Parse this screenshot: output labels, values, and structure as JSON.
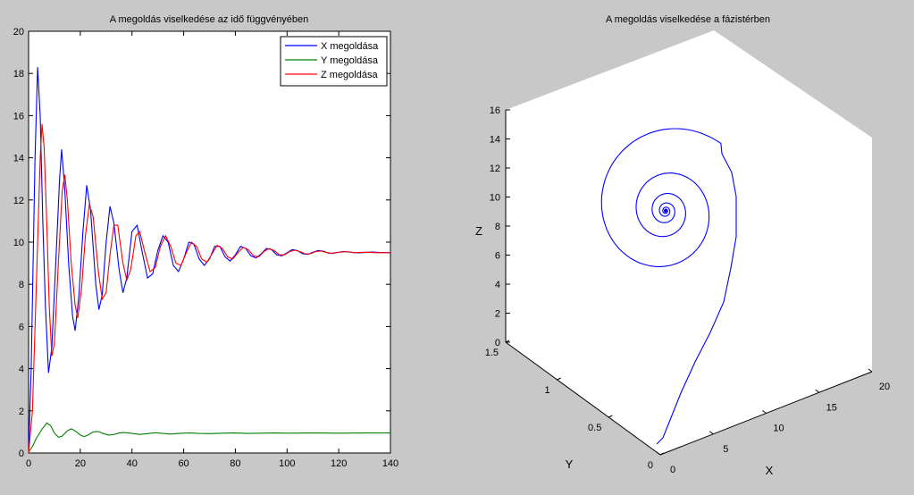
{
  "figure": {
    "background": "#c8c8c8",
    "plot_background": "#ffffff"
  },
  "chart_data": [
    {
      "type": "line",
      "title": "A megoldás viselkedése az idő függvényében",
      "xlabel": "",
      "ylabel": "",
      "xlim": [
        0,
        140
      ],
      "ylim": [
        0,
        20
      ],
      "xticks": [
        0,
        20,
        40,
        60,
        80,
        100,
        120,
        140
      ],
      "yticks": [
        0,
        2,
        4,
        6,
        8,
        10,
        12,
        14,
        16,
        18,
        20
      ],
      "grid": false,
      "legend_position": "top-right",
      "series": [
        {
          "name": "X megoldása",
          "color": "#0000ff",
          "points": [
            [
              0,
              0
            ],
            [
              1,
              4
            ],
            [
              2.5,
              14
            ],
            [
              3.5,
              18.3
            ],
            [
              4.5,
              16
            ],
            [
              5.5,
              11
            ],
            [
              6.5,
              7
            ],
            [
              7.7,
              3.8
            ],
            [
              9,
              5
            ],
            [
              10.5,
              9
            ],
            [
              12,
              13
            ],
            [
              12.8,
              14.4
            ],
            [
              14,
              12.5
            ],
            [
              15.5,
              9
            ],
            [
              17,
              6.5
            ],
            [
              18,
              5.8
            ],
            [
              19.5,
              7.5
            ],
            [
              21,
              10.5
            ],
            [
              22.5,
              12.7
            ],
            [
              24,
              11.5
            ],
            [
              26,
              8
            ],
            [
              27.2,
              6.8
            ],
            [
              28.5,
              7.5
            ],
            [
              30,
              10
            ],
            [
              31.5,
              11.7
            ],
            [
              33,
              10.9
            ],
            [
              35,
              8.7
            ],
            [
              36.5,
              7.6
            ],
            [
              38,
              8.3
            ],
            [
              40,
              10.5
            ],
            [
              42,
              10.8
            ],
            [
              44,
              9.5
            ],
            [
              46,
              8.3
            ],
            [
              48,
              8.5
            ],
            [
              50,
              9.6
            ],
            [
              52,
              10.3
            ],
            [
              54,
              10
            ],
            [
              56,
              8.9
            ],
            [
              58,
              8.6
            ],
            [
              60,
              9.2
            ],
            [
              62,
              10
            ],
            [
              64,
              9.9
            ],
            [
              66,
              9.2
            ],
            [
              68,
              8.9
            ],
            [
              70,
              9.2
            ],
            [
              72,
              9.8
            ],
            [
              74,
              9.8
            ],
            [
              76,
              9.3
            ],
            [
              78,
              9.1
            ],
            [
              80,
              9.4
            ],
            [
              82,
              9.8
            ],
            [
              84,
              9.7
            ],
            [
              86,
              9.35
            ],
            [
              88,
              9.25
            ],
            [
              90,
              9.45
            ],
            [
              92,
              9.7
            ],
            [
              94,
              9.65
            ],
            [
              96,
              9.4
            ],
            [
              98,
              9.35
            ],
            [
              100,
              9.5
            ],
            [
              102,
              9.65
            ],
            [
              104,
              9.6
            ],
            [
              106,
              9.45
            ],
            [
              108,
              9.42
            ],
            [
              110,
              9.52
            ],
            [
              112,
              9.6
            ],
            [
              114,
              9.57
            ],
            [
              116,
              9.48
            ],
            [
              118,
              9.47
            ],
            [
              120,
              9.52
            ],
            [
              122,
              9.56
            ],
            [
              124,
              9.54
            ],
            [
              126,
              9.5
            ],
            [
              128,
              9.49
            ],
            [
              130,
              9.51
            ],
            [
              133,
              9.53
            ],
            [
              136,
              9.51
            ],
            [
              140,
              9.5
            ]
          ]
        },
        {
          "name": "Y megoldása",
          "color": "#008000",
          "points": [
            [
              0,
              0.05
            ],
            [
              1.5,
              0.3
            ],
            [
              3,
              0.7
            ],
            [
              5,
              1.1
            ],
            [
              7,
              1.42
            ],
            [
              8.5,
              1.3
            ],
            [
              10,
              0.95
            ],
            [
              11.5,
              0.75
            ],
            [
              13,
              0.8
            ],
            [
              15,
              1.05
            ],
            [
              16.5,
              1.15
            ],
            [
              18,
              1.05
            ],
            [
              20,
              0.85
            ],
            [
              21.5,
              0.78
            ],
            [
              23,
              0.85
            ],
            [
              25,
              1
            ],
            [
              27,
              1.02
            ],
            [
              29,
              0.92
            ],
            [
              31,
              0.85
            ],
            [
              33,
              0.88
            ],
            [
              35,
              0.95
            ],
            [
              37,
              0.97
            ],
            [
              40,
              0.93
            ],
            [
              43,
              0.88
            ],
            [
              46,
              0.92
            ],
            [
              49,
              0.96
            ],
            [
              52,
              0.93
            ],
            [
              55,
              0.9
            ],
            [
              58,
              0.93
            ],
            [
              62,
              0.95
            ],
            [
              66,
              0.93
            ],
            [
              70,
              0.92
            ],
            [
              75,
              0.94
            ],
            [
              80,
              0.95
            ],
            [
              85,
              0.93
            ],
            [
              90,
              0.94
            ],
            [
              95,
              0.95
            ],
            [
              100,
              0.94
            ],
            [
              110,
              0.95
            ],
            [
              120,
              0.94
            ],
            [
              130,
              0.95
            ],
            [
              140,
              0.95
            ]
          ]
        },
        {
          "name": "Z megoldása",
          "color": "#ff0000",
          "points": [
            [
              0,
              0
            ],
            [
              1.5,
              2
            ],
            [
              3,
              8
            ],
            [
              4.5,
              14
            ],
            [
              5.2,
              15.6
            ],
            [
              6,
              14.5
            ],
            [
              7,
              11
            ],
            [
              8,
              7
            ],
            [
              9,
              4.6
            ],
            [
              10,
              5.2
            ],
            [
              11.5,
              9
            ],
            [
              13,
              12.4
            ],
            [
              14,
              13.2
            ],
            [
              15,
              12
            ],
            [
              16.5,
              9
            ],
            [
              18,
              7
            ],
            [
              19,
              6.4
            ],
            [
              20.5,
              7.8
            ],
            [
              22,
              10.3
            ],
            [
              23.5,
              11.8
            ],
            [
              25,
              11.2
            ],
            [
              27,
              8.6
            ],
            [
              28.5,
              7.3
            ],
            [
              30,
              7.6
            ],
            [
              31.5,
              9.4
            ],
            [
              33,
              10.8
            ],
            [
              34.5,
              10.8
            ],
            [
              36.5,
              9
            ],
            [
              38,
              8.2
            ],
            [
              39.5,
              8.7
            ],
            [
              41.5,
              10.3
            ],
            [
              43,
              10.5
            ],
            [
              45,
              9.5
            ],
            [
              47,
              8.6
            ],
            [
              49,
              8.8
            ],
            [
              51,
              9.8
            ],
            [
              53,
              10.3
            ],
            [
              55,
              9.8
            ],
            [
              57,
              9
            ],
            [
              59,
              8.9
            ],
            [
              61,
              9.5
            ],
            [
              63,
              10
            ],
            [
              65,
              9.8
            ],
            [
              67,
              9.2
            ],
            [
              69,
              9.05
            ],
            [
              71,
              9.45
            ],
            [
              73,
              9.85
            ],
            [
              75,
              9.7
            ],
            [
              77,
              9.3
            ],
            [
              79,
              9.2
            ],
            [
              81,
              9.5
            ],
            [
              83,
              9.75
            ],
            [
              85,
              9.65
            ],
            [
              87,
              9.35
            ],
            [
              89,
              9.3
            ],
            [
              91,
              9.55
            ],
            [
              93,
              9.7
            ],
            [
              95,
              9.6
            ],
            [
              97,
              9.4
            ],
            [
              99,
              9.4
            ],
            [
              101,
              9.55
            ],
            [
              103,
              9.62
            ],
            [
              105,
              9.55
            ],
            [
              107,
              9.45
            ],
            [
              109,
              9.45
            ],
            [
              111,
              9.55
            ],
            [
              113,
              9.58
            ],
            [
              115,
              9.52
            ],
            [
              117,
              9.47
            ],
            [
              120,
              9.52
            ],
            [
              123,
              9.55
            ],
            [
              126,
              9.5
            ],
            [
              130,
              9.52
            ],
            [
              135,
              9.5
            ],
            [
              140,
              9.5
            ]
          ]
        }
      ]
    },
    {
      "type": "line",
      "title": "A megoldás viselkedése a fázistérben",
      "xlabel": "X",
      "ylabel": "Y",
      "zlabel": "Z",
      "xlim": [
        0,
        20
      ],
      "ylim": [
        0,
        1.5
      ],
      "zlim": [
        0,
        16
      ],
      "xticks": [
        "0",
        "5",
        "10",
        "15",
        "20"
      ],
      "yticks": [
        "0",
        "0.5",
        "1",
        "1.5"
      ],
      "zticks": [
        "0",
        "2",
        "4",
        "6",
        "8",
        "10",
        "12",
        "14",
        "16"
      ],
      "grid": false,
      "view": "3d",
      "series": [
        {
          "name": "",
          "color": "#0000ff",
          "trajectory_center": {
            "x": 9.5,
            "y": 0.94,
            "z": 9.5
          },
          "trajectory_start": {
            "x": 0,
            "y": 0,
            "z": 0
          }
        }
      ]
    }
  ]
}
